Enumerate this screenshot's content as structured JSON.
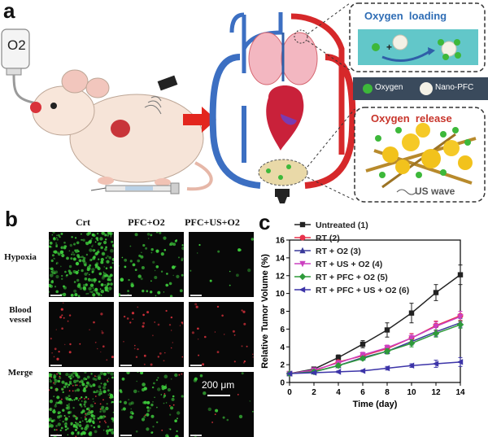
{
  "panel_a": {
    "label": "a",
    "o2_bottle_label": "O2",
    "oxygen_loading_title": "Oxygen  loading",
    "legend_oxygen": "Oxygen",
    "legend_nanopfc": "Nano-PFC",
    "oxygen_release_title": "Oxygen  release",
    "us_wave_label": "US wave",
    "colors": {
      "title_blue": "#2f6db5",
      "title_red": "#c8352b",
      "oxygen_green": "#3db83a",
      "legend_bg": "#3a4a5c"
    }
  },
  "panel_b": {
    "label": "b",
    "columns": [
      "Crt",
      "PFC+O2",
      "PFC+US+O2"
    ],
    "rows": [
      "Hypoxia",
      "Blood vessel",
      "Merge"
    ],
    "scalebar": "200 μm"
  },
  "panel_c": {
    "label": "c"
  },
  "chart_data": {
    "type": "line",
    "xlabel": "Time (day)",
    "ylabel": "Relative Tumor Volume (%)",
    "xlim": [
      0,
      14
    ],
    "ylim": [
      0,
      16
    ],
    "x": [
      0,
      2,
      4,
      6,
      8,
      10,
      12,
      14
    ],
    "xticks": [
      "0",
      "2",
      "4",
      "6",
      "8",
      "10",
      "12",
      "14"
    ],
    "yticks": [
      "0",
      "2",
      "4",
      "6",
      "8",
      "10",
      "12",
      "14",
      "16"
    ],
    "legend_position": "top-left",
    "grid": false,
    "series": [
      {
        "name": "Untreated (1)",
        "color": "#222222",
        "marker": "square",
        "values": [
          1.0,
          1.5,
          2.8,
          4.3,
          5.9,
          7.8,
          10.1,
          12.1
        ],
        "errors": [
          0,
          0.2,
          0.3,
          0.4,
          0.8,
          1.1,
          0.9,
          1.1
        ]
      },
      {
        "name": "RT (2)",
        "color": "#e8324b",
        "marker": "circle",
        "values": [
          1.0,
          1.3,
          2.3,
          3.0,
          3.8,
          5.0,
          6.4,
          7.5
        ],
        "errors": [
          0,
          0.2,
          0.2,
          0.3,
          0.4,
          0.5,
          0.5,
          0.5
        ]
      },
      {
        "name": "RT + O2 (3)",
        "color": "#3a3a9a",
        "marker": "triangle",
        "values": [
          1.0,
          1.2,
          1.9,
          2.8,
          3.5,
          4.6,
          5.7,
          6.7
        ],
        "errors": [
          0,
          0.2,
          0.2,
          0.3,
          0.3,
          0.4,
          0.5,
          0.5
        ]
      },
      {
        "name": "RT + US + O2 (4)",
        "color": "#cc40c0",
        "marker": "triangle-down",
        "values": [
          1.0,
          1.4,
          2.2,
          3.1,
          3.9,
          5.0,
          6.3,
          7.4
        ],
        "errors": [
          0,
          0.2,
          0.2,
          0.3,
          0.3,
          0.4,
          0.5,
          0.6
        ]
      },
      {
        "name": "RT + PFC + O2 (5)",
        "color": "#2e9a3a",
        "marker": "diamond",
        "values": [
          1.0,
          1.2,
          1.9,
          2.7,
          3.5,
          4.4,
          5.5,
          6.5
        ],
        "errors": [
          0,
          0.2,
          0.2,
          0.2,
          0.3,
          0.4,
          0.4,
          0.4
        ]
      },
      {
        "name": "RT + PFC + US + O2 (6)",
        "color": "#3c34a8",
        "marker": "triangle-left",
        "values": [
          1.0,
          1.1,
          1.2,
          1.3,
          1.6,
          1.9,
          2.1,
          2.3
        ],
        "errors": [
          0,
          0.1,
          0.1,
          0.1,
          0.2,
          0.2,
          0.4,
          0.5
        ]
      }
    ]
  }
}
